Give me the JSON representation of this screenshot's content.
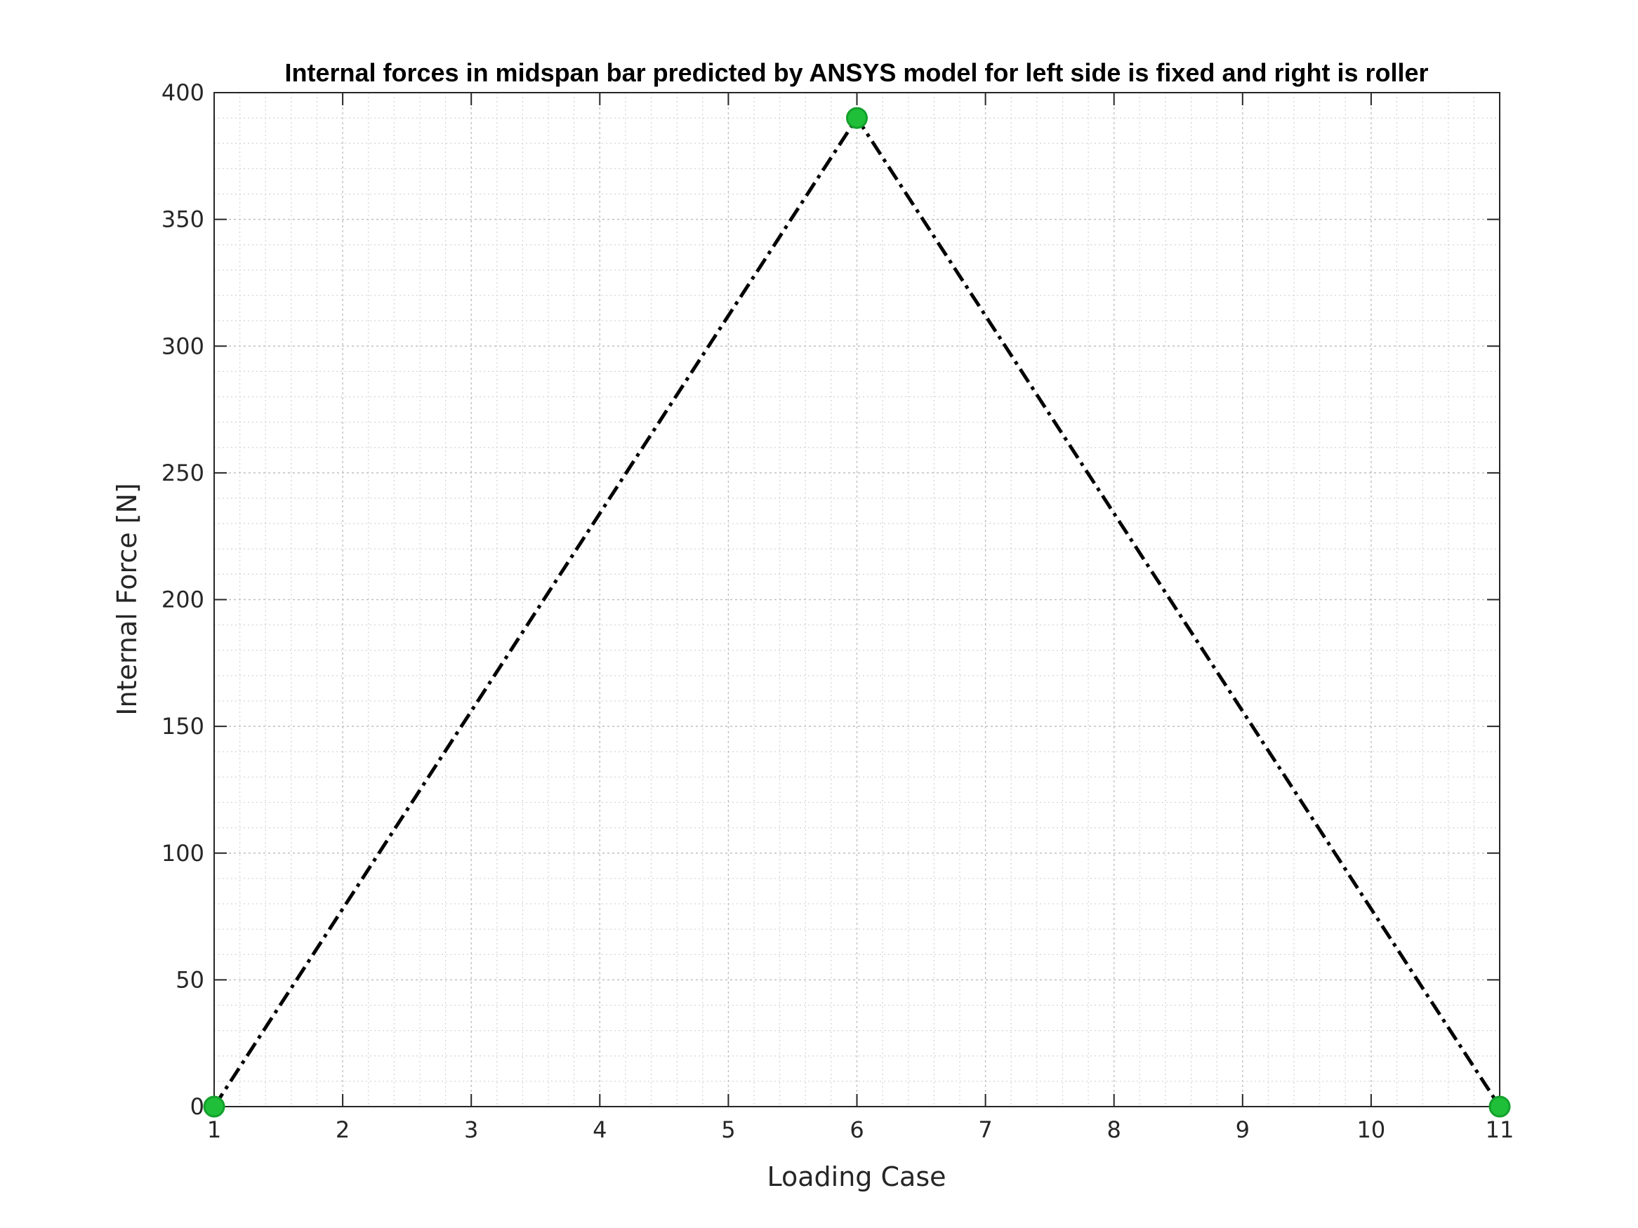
{
  "chart_data": {
    "type": "line",
    "title": "Internal forces in midspan bar predicted by ANSYS model for left side is fixed and right is roller",
    "xlabel": "Loading Case",
    "ylabel": "Internal Force [N]",
    "xlim": [
      1,
      11
    ],
    "ylim": [
      0,
      400
    ],
    "xticks": [
      1,
      2,
      3,
      4,
      5,
      6,
      7,
      8,
      9,
      10,
      11
    ],
    "yticks": [
      0,
      50,
      100,
      150,
      200,
      250,
      300,
      350,
      400
    ],
    "grid": true,
    "minor_grid": true,
    "series": [
      {
        "x": [
          1,
          6,
          11
        ],
        "y": [
          0,
          390,
          0
        ],
        "line_style": "dash-dot",
        "line_color": "#000000",
        "marker": "circle",
        "marker_color": "#1fbf3a"
      }
    ]
  }
}
